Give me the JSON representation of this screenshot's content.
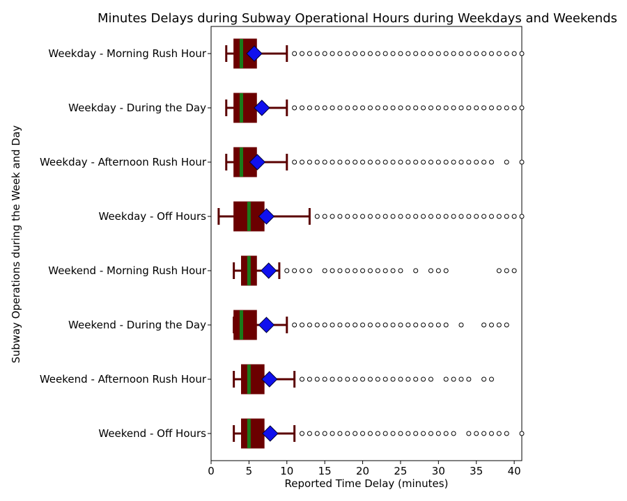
{
  "chart_data": {
    "type": "boxplot",
    "title": "Minutes Delays during Subway Operational Hours during Weekdays and Weekends",
    "xlabel": "Reported Time Delay (minutes)",
    "ylabel": "Subway Operations during the Week and Day",
    "xlim": [
      0,
      41
    ],
    "xticks": [
      0,
      5,
      10,
      15,
      20,
      25,
      30,
      35,
      40
    ],
    "orientation": "horizontal",
    "colors": {
      "box_fill": "#6b0000",
      "whisker": "#5a0000",
      "median": "#1a7a1a",
      "mean_marker": "#1010ee",
      "flier_edge": "#000000"
    },
    "categories": [
      "Weekday - Morning Rush Hour",
      "Weekday - During the Day",
      "Weekday - Afternoon Rush Hour",
      "Weekday - Off Hours",
      "Weekend - Morning Rush Hour",
      "Weekend - During the Day",
      "Weekend - Afternoon Rush Hour",
      "Weekend - Off Hours"
    ],
    "boxes": [
      {
        "whislo": 2,
        "q1": 3,
        "med": 4,
        "q3": 6,
        "whishi": 10,
        "mean": 5.7,
        "fliers": [
          11,
          12,
          13,
          14,
          15,
          16,
          17,
          18,
          19,
          20,
          21,
          22,
          23,
          24,
          25,
          26,
          27,
          28,
          29,
          30,
          31,
          32,
          33,
          34,
          35,
          36,
          37,
          38,
          39,
          40,
          41
        ]
      },
      {
        "whislo": 2,
        "q1": 3,
        "med": 4,
        "q3": 6,
        "whishi": 10,
        "mean": 6.7,
        "fliers": [
          11,
          12,
          13,
          14,
          15,
          16,
          17,
          18,
          19,
          20,
          21,
          22,
          23,
          24,
          25,
          26,
          27,
          28,
          29,
          30,
          31,
          32,
          33,
          34,
          35,
          36,
          37,
          38,
          39,
          40,
          41
        ]
      },
      {
        "whislo": 2,
        "q1": 3,
        "med": 4,
        "q3": 6,
        "whishi": 10,
        "mean": 6.1,
        "fliers": [
          11,
          12,
          13,
          14,
          15,
          16,
          17,
          18,
          19,
          20,
          21,
          22,
          23,
          24,
          25,
          26,
          27,
          28,
          29,
          30,
          31,
          32,
          33,
          34,
          35,
          36,
          37,
          39,
          41
        ]
      },
      {
        "whislo": 1,
        "q1": 3,
        "med": 5,
        "q3": 7,
        "whishi": 13,
        "mean": 7.3,
        "fliers": [
          14,
          15,
          16,
          17,
          18,
          19,
          20,
          21,
          22,
          23,
          24,
          25,
          26,
          27,
          28,
          29,
          30,
          31,
          32,
          33,
          34,
          35,
          36,
          37,
          38,
          39,
          40,
          41
        ]
      },
      {
        "whislo": 3,
        "q1": 4,
        "med": 5,
        "q3": 6,
        "whishi": 9,
        "mean": 7.6,
        "fliers": [
          10,
          11,
          12,
          13,
          15,
          16,
          17,
          18,
          19,
          20,
          21,
          22,
          23,
          24,
          25,
          27,
          29,
          30,
          31,
          38,
          39,
          40
        ]
      },
      {
        "whislo": 3,
        "q1": 3,
        "med": 4,
        "q3": 6,
        "whishi": 10,
        "mean": 7.3,
        "fliers": [
          11,
          12,
          13,
          14,
          15,
          16,
          17,
          18,
          19,
          20,
          21,
          22,
          23,
          24,
          25,
          26,
          27,
          28,
          29,
          30,
          31,
          33,
          36,
          37,
          38,
          39
        ]
      },
      {
        "whislo": 3,
        "q1": 4,
        "med": 5,
        "q3": 7,
        "whishi": 11,
        "mean": 7.7,
        "fliers": [
          12,
          13,
          14,
          15,
          16,
          17,
          18,
          19,
          20,
          21,
          22,
          23,
          24,
          25,
          26,
          27,
          28,
          29,
          31,
          32,
          33,
          34,
          36,
          37
        ]
      },
      {
        "whislo": 3,
        "q1": 4,
        "med": 5,
        "q3": 7,
        "whishi": 11,
        "mean": 7.8,
        "fliers": [
          12,
          13,
          14,
          15,
          16,
          17,
          18,
          19,
          20,
          21,
          22,
          23,
          24,
          25,
          26,
          27,
          28,
          29,
          30,
          31,
          32,
          34,
          35,
          36,
          37,
          38,
          39,
          41
        ]
      }
    ]
  }
}
